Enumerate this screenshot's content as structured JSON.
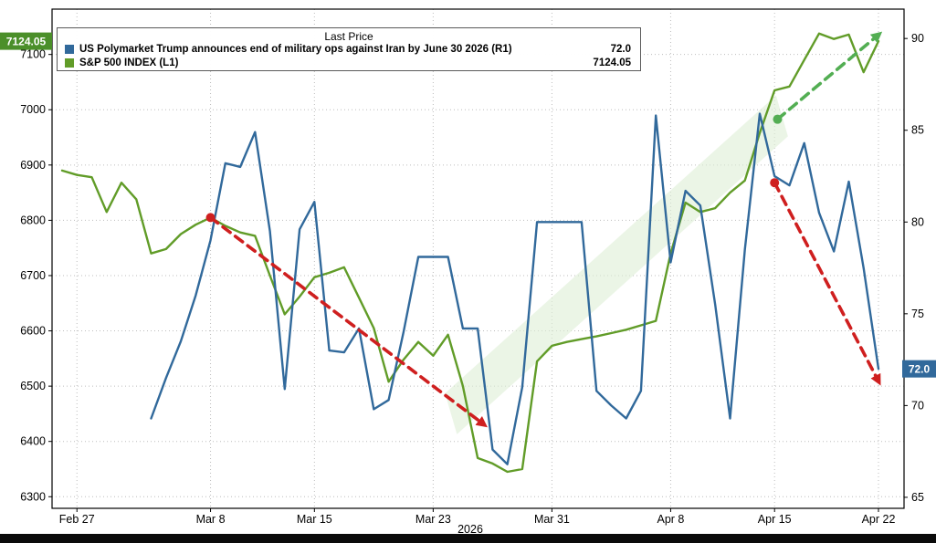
{
  "chart_data": {
    "type": "line",
    "title": "Last Price",
    "x_axis": {
      "label": "2026",
      "dates": [
        "Feb 26",
        "Feb 27",
        "Feb 28",
        "Mar 1",
        "Mar 2",
        "Mar 3",
        "Mar 4",
        "Mar 5",
        "Mar 6",
        "Mar 7",
        "Mar 8",
        "Mar 9",
        "Mar 10",
        "Mar 11",
        "Mar 12",
        "Mar 13",
        "Mar 14",
        "Mar 15",
        "Mar 16",
        "Mar 17",
        "Mar 18",
        "Mar 19",
        "Mar 20",
        "Mar 21",
        "Mar 22",
        "Mar 23",
        "Mar 24",
        "Mar 25",
        "Mar 26",
        "Mar 27",
        "Mar 28",
        "Mar 29",
        "Mar 30",
        "Mar 31",
        "Apr 1",
        "Apr 2",
        "Apr 3",
        "Apr 4",
        "Apr 5",
        "Apr 6",
        "Apr 7",
        "Apr 8",
        "Apr 9",
        "Apr 10",
        "Apr 11",
        "Apr 12",
        "Apr 13",
        "Apr 14",
        "Apr 15",
        "Apr 16",
        "Apr 17",
        "Apr 18",
        "Apr 19",
        "Apr 20",
        "Apr 21",
        "Apr 22"
      ],
      "ticks": [
        {
          "index": 1,
          "label": "Feb 27"
        },
        {
          "index": 10,
          "label": "Mar 8"
        },
        {
          "index": 17,
          "label": "Mar 15"
        },
        {
          "index": 25,
          "label": "Mar 23"
        },
        {
          "index": 33,
          "label": "Mar 31"
        },
        {
          "index": 41,
          "label": "Apr 8"
        },
        {
          "index": 48,
          "label": "Apr 15"
        },
        {
          "index": 55,
          "label": "Apr 22"
        }
      ]
    },
    "left_axis": {
      "ticks": [
        6300,
        6400,
        6500,
        6600,
        6700,
        6800,
        6900,
        7000,
        7100
      ],
      "min": 6279,
      "max": 7182
    },
    "right_axis": {
      "ticks": [
        65,
        70,
        75,
        80,
        85,
        90
      ],
      "min": 64.4,
      "max": 91.6
    },
    "series": [
      {
        "name": "US Polymarket Trump announces end of military ops against Iran by June 30 2026  (R1)",
        "axis": "right",
        "color": "#31699b",
        "tag_color": "#31699b",
        "last": 72.0,
        "last_label": "72.0",
        "values": [
          null,
          null,
          null,
          null,
          null,
          null,
          69.3,
          71.5,
          73.5,
          76,
          79,
          83.2,
          83,
          84.9,
          79.5,
          70.9,
          79.6,
          81.1,
          73,
          72.9,
          74.2,
          69.8,
          70.3,
          74,
          78.1,
          78.1,
          78.1,
          74.2,
          74.2,
          67.6,
          66.8,
          71,
          80,
          80,
          80,
          80,
          70.8,
          70,
          69.3,
          70.8,
          85.8,
          77.8,
          81.7,
          80.9,
          75.5,
          69.3,
          78.5,
          85.9,
          82.5,
          82,
          84.3,
          80.5,
          78.4,
          82.2,
          77.5,
          72
        ]
      },
      {
        "name": "S&P 500 INDEX  (L1)",
        "axis": "left",
        "color": "#619c28",
        "tag_color": "#4b8f2a",
        "last": 7124.05,
        "last_label": "7124.05",
        "values": [
          6890,
          6882,
          6878,
          6815,
          6868,
          6838,
          6740,
          6748,
          6775,
          6792,
          6805,
          6790,
          6778,
          6772,
          6700,
          6630,
          6662,
          6697,
          6705,
          6715,
          6660,
          6605,
          6508,
          6548,
          6580,
          6555,
          6593,
          6500,
          6370,
          6360,
          6345,
          6350,
          6545,
          6573,
          6580,
          6585,
          6590,
          6596,
          6602,
          6610,
          6618,
          6740,
          6832,
          6815,
          6822,
          6850,
          6872,
          6958,
          7035,
          7042,
          7090,
          7138,
          7128,
          7136,
          7068,
          7124.05
        ]
      }
    ],
    "annotations": {
      "band": {
        "axis": "left",
        "color": "#ddeed6",
        "opacity": 0.6,
        "points": [
          [
            25.8,
            6487
          ],
          [
            48.1,
            7026
          ],
          [
            48.9,
            6952
          ],
          [
            26.6,
            6413
          ]
        ]
      },
      "arrows": [
        {
          "name": "red-trend-arrow-1",
          "color": "#cf1f1f",
          "axis": "left",
          "from": [
            10,
            6805
          ],
          "to": [
            28.4,
            6431
          ],
          "dot_at_start": true
        },
        {
          "name": "red-trend-arrow-2",
          "color": "#cf1f1f",
          "axis": "left",
          "from": [
            48,
            6868
          ],
          "to": [
            55,
            6509
          ],
          "dot_at_start": true
        },
        {
          "name": "green-trend-arrow",
          "color": "#53ae53",
          "axis": "right",
          "from": [
            48.2,
            85.6
          ],
          "to": [
            55,
            90.2
          ],
          "dot_at_start": true
        }
      ]
    },
    "grid": {
      "style": "dotted",
      "color": "#bdbdbd"
    }
  },
  "legend": {
    "title": "Last Price"
  }
}
